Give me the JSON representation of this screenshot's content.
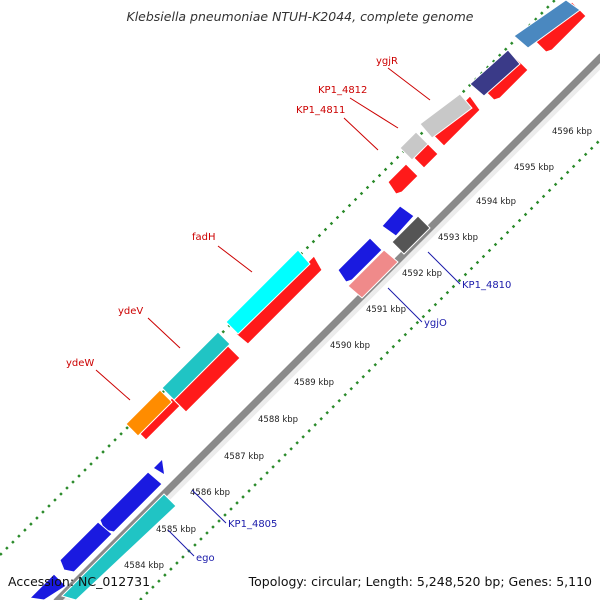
{
  "title": "Klebsiella pneumoniae NTUH-K2044, complete genome",
  "accession": "Accession: NC_012731",
  "topology": "Topology: circular; Length: 5,248,520 bp; Genes: 5,110",
  "colors": {
    "backbone": "#8a8a8a",
    "tick": "#2a8a2a",
    "forward_label": "#cc0000",
    "reverse_label": "#1a1aaa",
    "cds": "#ff1a1a"
  },
  "ticks": [
    {
      "label": "4584 kbp"
    },
    {
      "label": "4585 kbp"
    },
    {
      "label": "4586 kbp"
    },
    {
      "label": "4587 kbp"
    },
    {
      "label": "4588 kbp"
    },
    {
      "label": "4589 kbp"
    },
    {
      "label": "4590 kbp"
    },
    {
      "label": "4591 kbp"
    },
    {
      "label": "4592 kbp"
    },
    {
      "label": "4593 kbp"
    },
    {
      "label": "4594 kbp"
    },
    {
      "label": "4595 kbp"
    },
    {
      "label": "4596 kbp"
    }
  ],
  "gene_labels": [
    {
      "name": "ygjR",
      "strand": "forward"
    },
    {
      "name": "KP1_4812",
      "strand": "forward"
    },
    {
      "name": "KP1_4811",
      "strand": "forward"
    },
    {
      "name": "fadH",
      "strand": "forward"
    },
    {
      "name": "ydeV",
      "strand": "forward"
    },
    {
      "name": "ydeW",
      "strand": "forward"
    },
    {
      "name": "KP1_4810",
      "strand": "reverse"
    },
    {
      "name": "ygjO",
      "strand": "reverse"
    },
    {
      "name": "KP1_4805",
      "strand": "reverse"
    },
    {
      "name": "ego",
      "strand": "reverse"
    }
  ]
}
